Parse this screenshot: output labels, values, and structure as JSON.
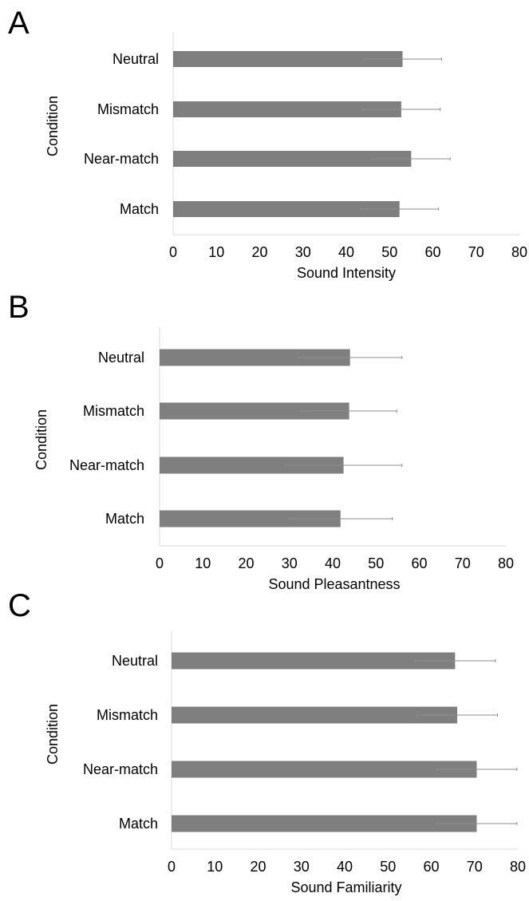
{
  "chart_data": [
    {
      "type": "bar",
      "orientation": "horizontal",
      "panel": "A",
      "categories": [
        "Neutral",
        "Mismatch",
        "Near-match",
        "Match"
      ],
      "values": [
        53,
        52.7,
        55,
        52.3
      ],
      "errors": [
        9,
        9,
        9,
        9
      ],
      "xlabel": "Sound Intensity",
      "ylabel": "Condition",
      "xlim": [
        0,
        80
      ],
      "xticks": [
        "0",
        "10",
        "20",
        "30",
        "40",
        "50",
        "60",
        "70",
        "80"
      ],
      "bar_color": "#7f7f7f"
    },
    {
      "type": "bar",
      "orientation": "horizontal",
      "panel": "B",
      "categories": [
        "Neutral",
        "Mismatch",
        "Near-match",
        "Match"
      ],
      "values": [
        44,
        43.8,
        42.5,
        41.8
      ],
      "errors": [
        12,
        11,
        13.5,
        12
      ],
      "xlabel": "Sound Pleasantness",
      "ylabel": "Condition",
      "xlim": [
        0,
        80
      ],
      "xticks": [
        "0",
        "10",
        "20",
        "30",
        "40",
        "50",
        "60",
        "70",
        "80"
      ],
      "bar_color": "#7f7f7f"
    },
    {
      "type": "bar",
      "orientation": "horizontal",
      "panel": "C",
      "categories": [
        "Neutral",
        "Mismatch",
        "Near-match",
        "Match"
      ],
      "values": [
        65.5,
        66,
        70.5,
        70.5
      ],
      "errors": [
        9.3,
        9.3,
        9.3,
        9.3
      ],
      "xlabel": "Sound Familiarity",
      "ylabel": "Condition",
      "xlim": [
        0,
        80
      ],
      "xticks": [
        "0",
        "10",
        "20",
        "30",
        "40",
        "50",
        "60",
        "70",
        "80"
      ],
      "bar_color": "#7f7f7f"
    }
  ]
}
